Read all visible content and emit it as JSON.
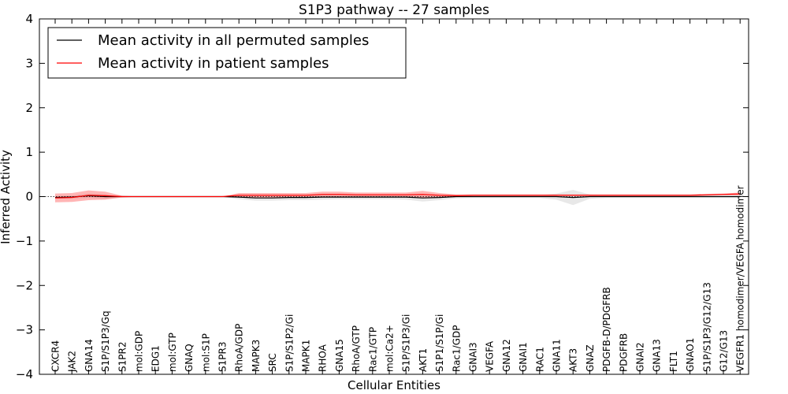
{
  "chart_data": {
    "type": "line",
    "title": "S1P3 pathway -- 27 samples",
    "xlabel": "Cellular Entities",
    "ylabel": "Inferred Activity",
    "ylim": [
      -4,
      4
    ],
    "yticks": [
      "4",
      "3",
      "2",
      "1",
      "0",
      "−1",
      "−2",
      "−3",
      "−4"
    ],
    "ytick_values": [
      4,
      3,
      2,
      1,
      0,
      -1,
      -2,
      -3,
      -4
    ],
    "legend_position": "upper-left",
    "categories": [
      "CXCR4",
      "JAK2",
      "GNA14",
      "S1P/S1P3/Gq",
      "S1PR2",
      "mol:GDP",
      "EDG1",
      "mol:GTP",
      "GNAQ",
      "mol:S1P",
      "S1PR3",
      "RhoA/GDP",
      "MAPK3",
      "SRC",
      "S1P/S1P2/Gi",
      "MAPK1",
      "RHOA",
      "GNA15",
      "RhoA/GTP",
      "Rac1/GTP",
      "mol:Ca2+",
      "S1P/S1P3/Gi",
      "AKT1",
      "S1P1/S1P/Gi",
      "Rac1/GDP",
      "GNAI3",
      "VEGFA",
      "GNA12",
      "GNAI1",
      "RAC1",
      "GNA11",
      "AKT3",
      "GNAZ",
      "PDGFB-D/PDGFRB",
      "PDGFRB",
      "GNAI2",
      "GNA13",
      "FLT1",
      "GNAO1",
      "S1P/S1P3/G12/G13",
      "G12/G13",
      "VEGFR1 homodimer/VEGFA homodimer"
    ],
    "series": [
      {
        "name": "Mean activity in all permuted samples",
        "color": "#000000",
        "values": [
          -0.02,
          -0.01,
          0.02,
          0.0,
          0.0,
          0.0,
          0.0,
          0.0,
          0.0,
          0.0,
          0.0,
          -0.01,
          -0.03,
          -0.03,
          -0.02,
          -0.02,
          -0.01,
          -0.01,
          -0.01,
          -0.01,
          -0.01,
          -0.01,
          -0.03,
          -0.02,
          0.0,
          0.0,
          0.0,
          0.0,
          0.0,
          0.0,
          0.0,
          -0.02,
          0.0,
          0.0,
          0.0,
          0.0,
          0.0,
          0.0,
          0.0,
          0.0,
          0.0,
          0.0
        ],
        "band": [
          0.03,
          0.03,
          0.05,
          0.05,
          0.01,
          0.0,
          0.0,
          0.0,
          0.0,
          0.0,
          0.0,
          0.05,
          0.06,
          0.06,
          0.06,
          0.06,
          0.06,
          0.05,
          0.05,
          0.05,
          0.05,
          0.06,
          0.08,
          0.06,
          0.04,
          0.03,
          0.03,
          0.03,
          0.03,
          0.03,
          0.07,
          0.17,
          0.05,
          0.03,
          0.03,
          0.03,
          0.03,
          0.03,
          0.03,
          0.03,
          0.03,
          0.03
        ]
      },
      {
        "name": "Mean activity in patient samples",
        "color": "#ff0000",
        "values": [
          -0.03,
          -0.02,
          0.03,
          0.02,
          0.0,
          0.0,
          0.0,
          0.0,
          0.0,
          0.0,
          0.0,
          0.03,
          0.03,
          0.03,
          0.03,
          0.03,
          0.05,
          0.05,
          0.04,
          0.04,
          0.04,
          0.04,
          0.05,
          0.03,
          0.02,
          0.03,
          0.03,
          0.03,
          0.03,
          0.03,
          0.03,
          0.03,
          0.03,
          0.03,
          0.03,
          0.03,
          0.03,
          0.03,
          0.03,
          0.04,
          0.05,
          0.06
        ],
        "band": [
          0.1,
          0.1,
          0.11,
          0.09,
          0.02,
          0.0,
          0.0,
          0.0,
          0.0,
          0.0,
          0.0,
          0.05,
          0.05,
          0.05,
          0.05,
          0.05,
          0.06,
          0.06,
          0.05,
          0.05,
          0.05,
          0.05,
          0.08,
          0.05,
          0.03,
          0.02,
          0.02,
          0.02,
          0.02,
          0.02,
          0.02,
          0.02,
          0.02,
          0.02,
          0.02,
          0.02,
          0.02,
          0.02,
          0.02,
          0.02,
          0.02,
          0.03
        ]
      }
    ],
    "zero_line": "dotted"
  }
}
